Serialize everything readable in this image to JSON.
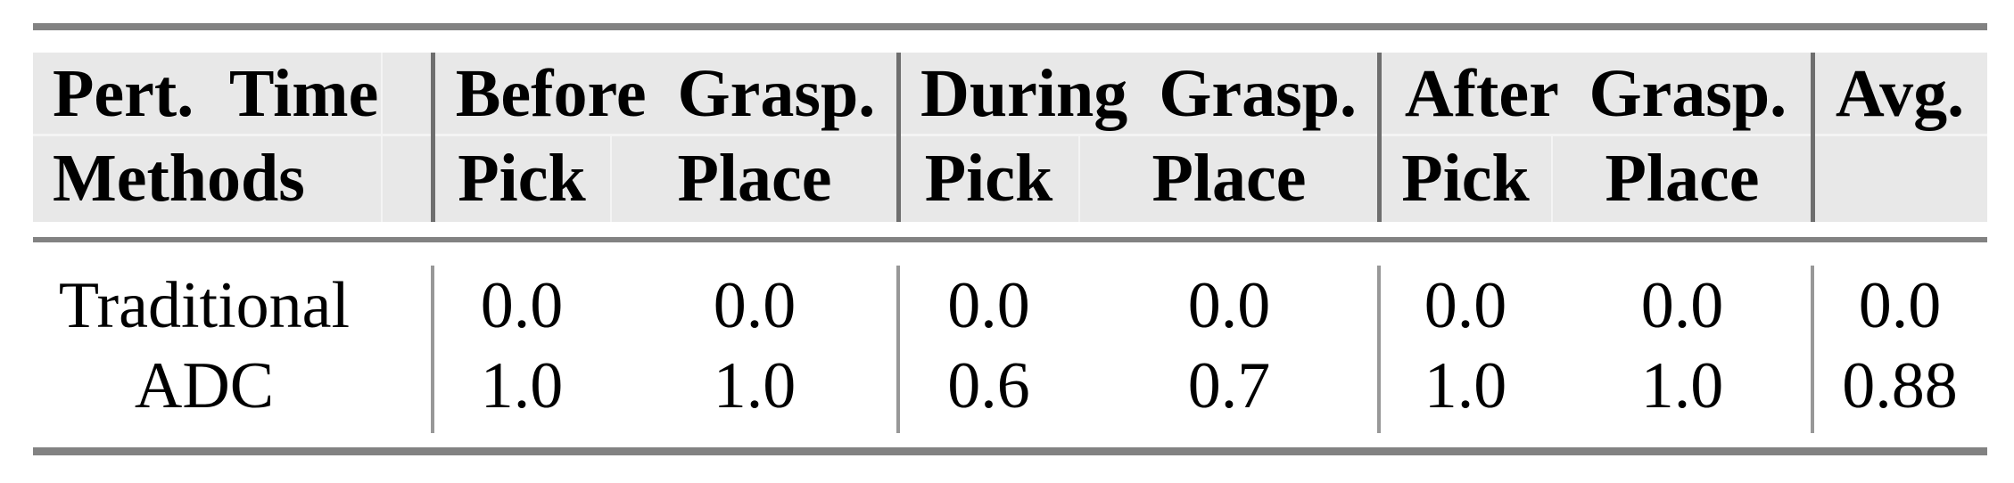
{
  "table": {
    "header": {
      "row1": {
        "pert_time": "Pert. Time",
        "before": "Before Grasp.",
        "during": "During Grasp.",
        "after": "After Grasp.",
        "avg": "Avg."
      },
      "row2": {
        "methods": "Methods",
        "before_pick": "Pick",
        "before_place": "Place",
        "during_pick": "Pick",
        "during_place": "Place",
        "after_pick": "Pick",
        "after_place": "Place",
        "avg": ""
      }
    },
    "rows": [
      {
        "method": "Traditional",
        "values": {
          "before_pick": "0.0",
          "before_place": "0.0",
          "during_pick": "0.0",
          "during_place": "0.0",
          "after_pick": "0.0",
          "after_place": "0.0",
          "avg": "0.0"
        }
      },
      {
        "method": "ADC",
        "values": {
          "before_pick": "1.0",
          "before_place": "1.0",
          "during_pick": "0.6",
          "during_place": "0.7",
          "after_pick": "1.0",
          "after_place": "1.0",
          "avg": "0.88"
        }
      }
    ]
  },
  "colors": {
    "header_background": "#e8e8e8",
    "rule_gray": "#828282",
    "header_divider": "#6e6e6e",
    "body_divider": "#989898",
    "text": "#000000",
    "page_background": "#ffffff"
  },
  "chart_data": {
    "type": "table",
    "title": "",
    "column_groups": [
      "Before Grasp.",
      "During Grasp.",
      "After Grasp."
    ],
    "columns": [
      "Methods",
      "Before Grasp. Pick",
      "Before Grasp. Place",
      "During Grasp. Pick",
      "During Grasp. Place",
      "After Grasp. Pick",
      "After Grasp. Place",
      "Avg."
    ],
    "rows": [
      [
        "Traditional",
        0.0,
        0.0,
        0.0,
        0.0,
        0.0,
        0.0,
        0.0
      ],
      [
        "ADC",
        1.0,
        1.0,
        0.6,
        0.7,
        1.0,
        1.0,
        0.88
      ]
    ]
  }
}
